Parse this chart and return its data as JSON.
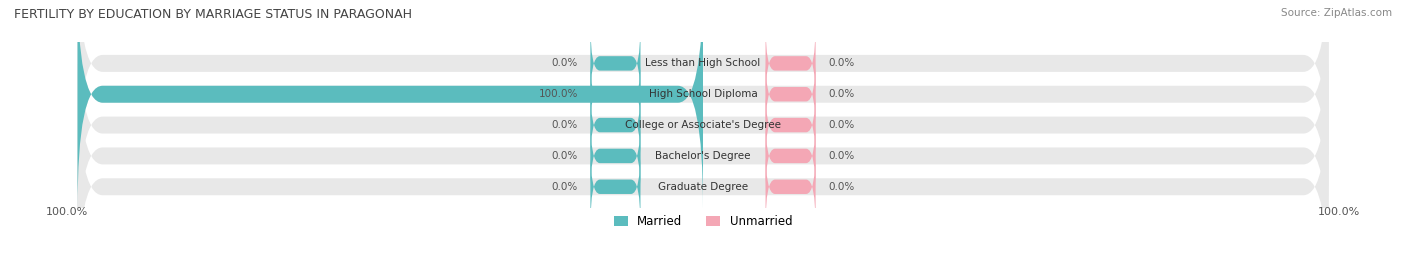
{
  "title": "FERTILITY BY EDUCATION BY MARRIAGE STATUS IN PARAGONAH",
  "source": "Source: ZipAtlas.com",
  "categories": [
    "Less than High School",
    "High School Diploma",
    "College or Associate's Degree",
    "Bachelor's Degree",
    "Graduate Degree"
  ],
  "married_values": [
    0.0,
    100.0,
    0.0,
    0.0,
    0.0
  ],
  "unmarried_values": [
    0.0,
    0.0,
    0.0,
    0.0,
    0.0
  ],
  "married_color": "#5bbcbe",
  "unmarried_color": "#f4a7b5",
  "bar_bg_color": "#e8e8e8",
  "bar_height": 0.55,
  "figsize": [
    14.06,
    2.68
  ],
  "dpi": 100,
  "xlim": [
    -100,
    100
  ],
  "x_axis_labels": [
    "-100.0%",
    "100.0%"
  ],
  "bg_color": "#ffffff",
  "label_color": "#555555",
  "title_color": "#444444",
  "legend_married": "Married",
  "legend_unmarried": "Unmarried"
}
